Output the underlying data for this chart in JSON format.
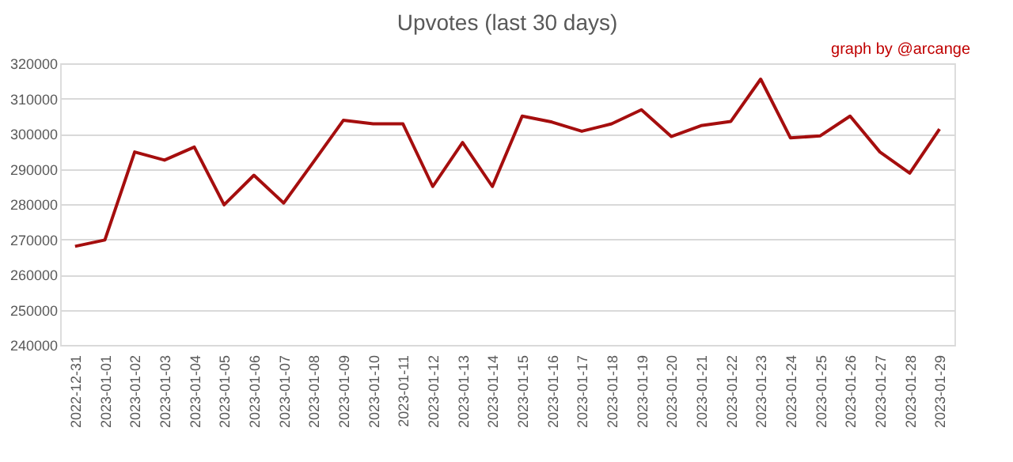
{
  "chart_data": {
    "type": "line",
    "title": "Upvotes (last 30 days)",
    "annotations": [
      "graph by @arcange"
    ],
    "categories": [
      "2022-12-31",
      "2023-01-01",
      "2023-01-02",
      "2023-01-03",
      "2023-01-04",
      "2023-01-05",
      "2023-01-06",
      "2023-01-07",
      "2023-01-08",
      "2023-01-09",
      "2023-01-10",
      "2023-01-11",
      "2023-01-12",
      "2023-01-13",
      "2023-01-14",
      "2023-01-15",
      "2023-01-16",
      "2023-01-17",
      "2023-01-18",
      "2023-01-19",
      "2023-01-20",
      "2023-01-21",
      "2023-01-22",
      "2023-01-23",
      "2023-01-24",
      "2023-01-25",
      "2023-01-26",
      "2023-01-27",
      "2023-01-28",
      "2023-01-29"
    ],
    "series": [
      {
        "color": "#a50e0e",
        "values": [
          268000,
          269800,
          294800,
          292500,
          296200,
          279800,
          288200,
          280300,
          292000,
          303800,
          302800,
          302800,
          285000,
          297500,
          285000,
          305000,
          303300,
          300700,
          302800,
          306800,
          299200,
          302300,
          303500,
          315500,
          298800,
          299400,
          305000,
          294800,
          288800,
          301300
        ]
      }
    ],
    "ylim": [
      240000,
      320000
    ],
    "yticks": [
      240000,
      250000,
      260000,
      270000,
      280000,
      290000,
      300000,
      310000,
      320000
    ],
    "grid": "y",
    "marker": "none",
    "line_style": "solid"
  }
}
